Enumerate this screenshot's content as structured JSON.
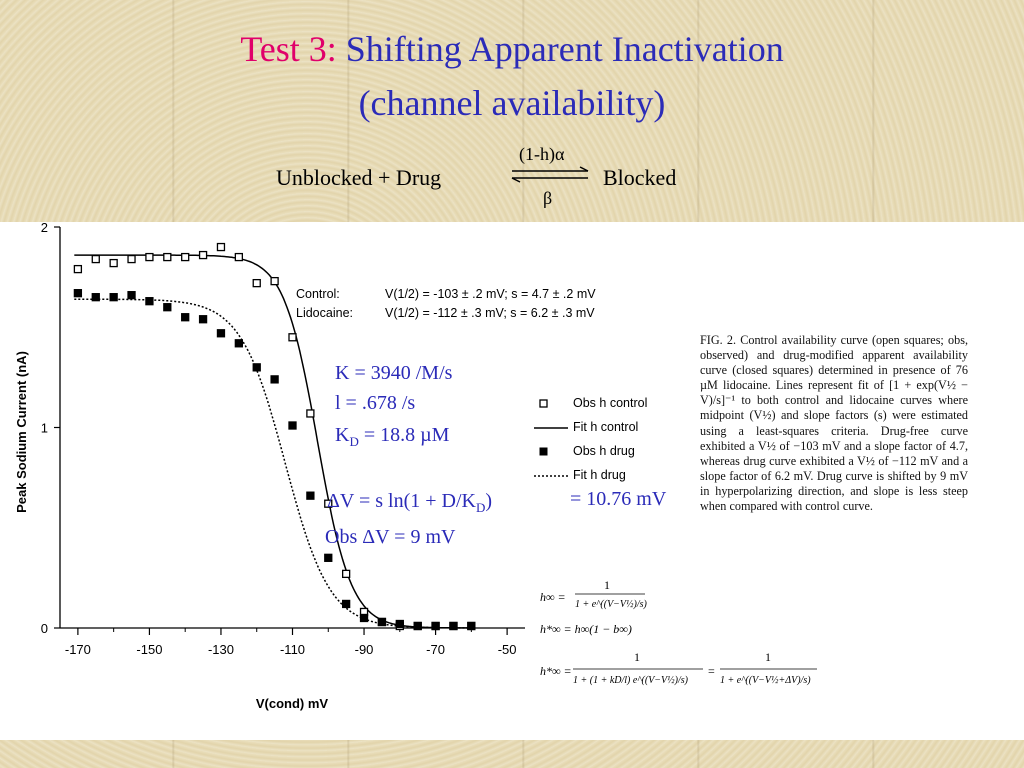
{
  "slide": {
    "title_prefix": "Test 3:",
    "title_main": " Shifting Apparent Inactivation",
    "title_line2": "(channel availability)",
    "reaction": {
      "left": "Unblocked + Drug",
      "forward": "(1-h)α",
      "backward": "β",
      "right": "Blocked"
    },
    "notes": {
      "k": "K = 3940 /M/s",
      "l": "l   = .678 /s",
      "kd_prefix": "K",
      "kd_sub": "D",
      "kd_suffix": " = 18.8 µM",
      "dv_prefix": "ΔV = s ln(1 + D/K",
      "dv_sub": "D",
      "dv_suffix": ")",
      "dv_value": " = 10.76 mV",
      "obs": "Obs ΔV = 9 mV"
    },
    "equations": {
      "h1_lhs": "h∞ =",
      "h1_num": "1",
      "h1_den": "1 + e^((V−V½)/s)",
      "h2": "h*∞ = h∞(1 − b∞)",
      "h3_lhs": "h*∞ =",
      "h3_num": "1",
      "h3_den": "1 + (1 + kD/l) e^((V−V½)/s)",
      "h3_eq": "=",
      "h3_num2": "1",
      "h3_den2": "1 + e^((V−V½+ΔV)/s)"
    },
    "caption": "FIG. 2. Control availability curve (open squares; obs, observed) and drug-modified apparent availability curve (closed squares) determined in presence of 76 µM lidocaine. Lines represent fit of [1 + exp(V½ − V)/s]⁻¹ to both control and lidocaine curves where midpoint (V½) and slope factors (s) were estimated using a least-squares criteria. Drug-free curve exhibited a V½ of −103 mV and a slope factor of 4.7, whereas drug curve exhibited a V½ of −112 mV and a slope factor of 6.2 mV. Drug curve is shifted by 9 mV in hyperpolarizing direction, and slope is less steep when compared with control curve."
  },
  "chart_data": {
    "type": "scatter",
    "title": "",
    "xlabel": "V(cond)   mV",
    "ylabel": "Peak  Sodium  Current  (nA)",
    "xlim": [
      -175,
      -45
    ],
    "ylim": [
      0,
      2
    ],
    "x_ticks": [
      -170,
      -150,
      -130,
      -110,
      -90,
      -70,
      -50
    ],
    "y_ticks": [
      0,
      1,
      2
    ],
    "fit_text": {
      "control_label": "Control:",
      "control_vals": "V(1/2) = -103 ± .2 mV;   s = 4.7 ± .2 mV",
      "lido_label": "Lidocaine:",
      "lido_vals": "V(1/2) = -112 ± .3 mV;   s = 6.2 ± .3 mV"
    },
    "legend": [
      "Obs h control",
      "Fit h control",
      "Obs h drug",
      "Fit h drug"
    ],
    "legend_position": "right",
    "series": [
      {
        "name": "Obs h control",
        "marker": "open-square",
        "x": [
          -170,
          -165,
          -160,
          -155,
          -150,
          -145,
          -140,
          -135,
          -130,
          -125,
          -120,
          -115,
          -110,
          -105,
          -100,
          -95,
          -90,
          -85,
          -80,
          -75,
          -70,
          -65,
          -60
        ],
        "y": [
          1.79,
          1.84,
          1.82,
          1.84,
          1.85,
          1.85,
          1.85,
          1.86,
          1.9,
          1.85,
          1.72,
          1.73,
          1.45,
          1.07,
          0.62,
          0.27,
          0.08,
          0.03,
          0.01,
          0.01,
          0.01,
          0.01,
          0.01
        ]
      },
      {
        "name": "Obs h drug",
        "marker": "filled-square",
        "x": [
          -170,
          -165,
          -160,
          -155,
          -150,
          -145,
          -140,
          -135,
          -130,
          -125,
          -120,
          -115,
          -110,
          -105,
          -100,
          -95,
          -90,
          -85,
          -80,
          -75,
          -70,
          -65,
          -60
        ],
        "y": [
          1.67,
          1.65,
          1.65,
          1.66,
          1.63,
          1.6,
          1.55,
          1.54,
          1.47,
          1.42,
          1.3,
          1.24,
          1.01,
          0.66,
          0.35,
          0.12,
          0.05,
          0.03,
          0.02,
          0.01,
          0.01,
          0.01,
          0.01
        ]
      },
      {
        "name": "Fit h control",
        "style": "solid",
        "vhalf": -103,
        "slope": 4.7,
        "max": 1.86
      },
      {
        "name": "Fit h drug",
        "style": "dotted",
        "vhalf": -112,
        "slope": 6.2,
        "max": 1.64
      }
    ]
  }
}
